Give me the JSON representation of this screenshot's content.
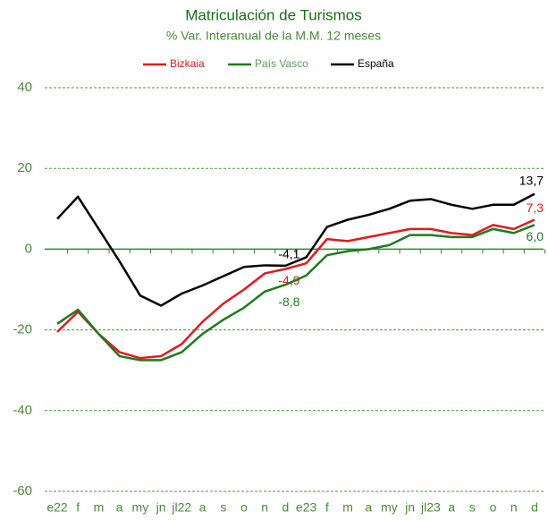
{
  "chart_data": {
    "type": "line",
    "title": "Matriculación de Turismos",
    "subtitle": "% Var. Interanual de la M.M. 12 meses",
    "categories": [
      "e22",
      "f",
      "m",
      "a",
      "my",
      "jn",
      "jl22",
      "a",
      "s",
      "o",
      "n",
      "d",
      "e23",
      "f",
      "m",
      "a",
      "my",
      "jn",
      "jl23",
      "a",
      "s",
      "o",
      "n",
      "d"
    ],
    "series": [
      {
        "name": "Bizkaia",
        "color": "#e31a1c",
        "values": [
          -20.5,
          -15.5,
          -21,
          -25.5,
          -27,
          -26.5,
          -23.5,
          -18,
          -13.5,
          -10,
          -6,
          -4.9,
          -3.5,
          2.5,
          2,
          3,
          4,
          5,
          5,
          4,
          3.5,
          6,
          5,
          7.3
        ],
        "value_labels": [
          null,
          null,
          null,
          null,
          null,
          null,
          null,
          null,
          null,
          null,
          null,
          "-4,9",
          null,
          null,
          null,
          null,
          null,
          null,
          null,
          null,
          null,
          null,
          null,
          "7,3"
        ]
      },
      {
        "name": "País Vasco",
        "color": "#1e7b1e",
        "values": [
          -18.5,
          -15,
          -21,
          -26.5,
          -27.5,
          -27.5,
          -25.5,
          -21,
          -17.5,
          -14.5,
          -10.5,
          -8.8,
          -6.5,
          -1.5,
          -0.5,
          0,
          1,
          3.5,
          3.5,
          3,
          3,
          5,
          4,
          6.0
        ],
        "value_labels": [
          null,
          null,
          null,
          null,
          null,
          null,
          null,
          null,
          null,
          null,
          null,
          "-8,8",
          null,
          null,
          null,
          null,
          null,
          null,
          null,
          null,
          null,
          null,
          null,
          "6,0"
        ]
      },
      {
        "name": "España",
        "color": "#000000",
        "values": [
          7.5,
          13,
          5,
          -3,
          -11.5,
          -14,
          -11,
          -9,
          -6.7,
          -4.4,
          -4,
          -4.1,
          -2,
          5.5,
          7.3,
          8.5,
          10,
          12,
          12.4,
          11,
          10,
          11,
          11,
          13.7
        ],
        "value_labels": [
          null,
          null,
          null,
          null,
          null,
          null,
          null,
          null,
          null,
          null,
          null,
          "-4,1",
          null,
          null,
          null,
          null,
          null,
          null,
          null,
          null,
          null,
          null,
          null,
          "13,7"
        ]
      }
    ],
    "ylim": [
      -60,
      40
    ],
    "yticks": [
      40,
      20,
      0,
      -20,
      -40,
      -60
    ],
    "grid": true,
    "legend": "top"
  }
}
